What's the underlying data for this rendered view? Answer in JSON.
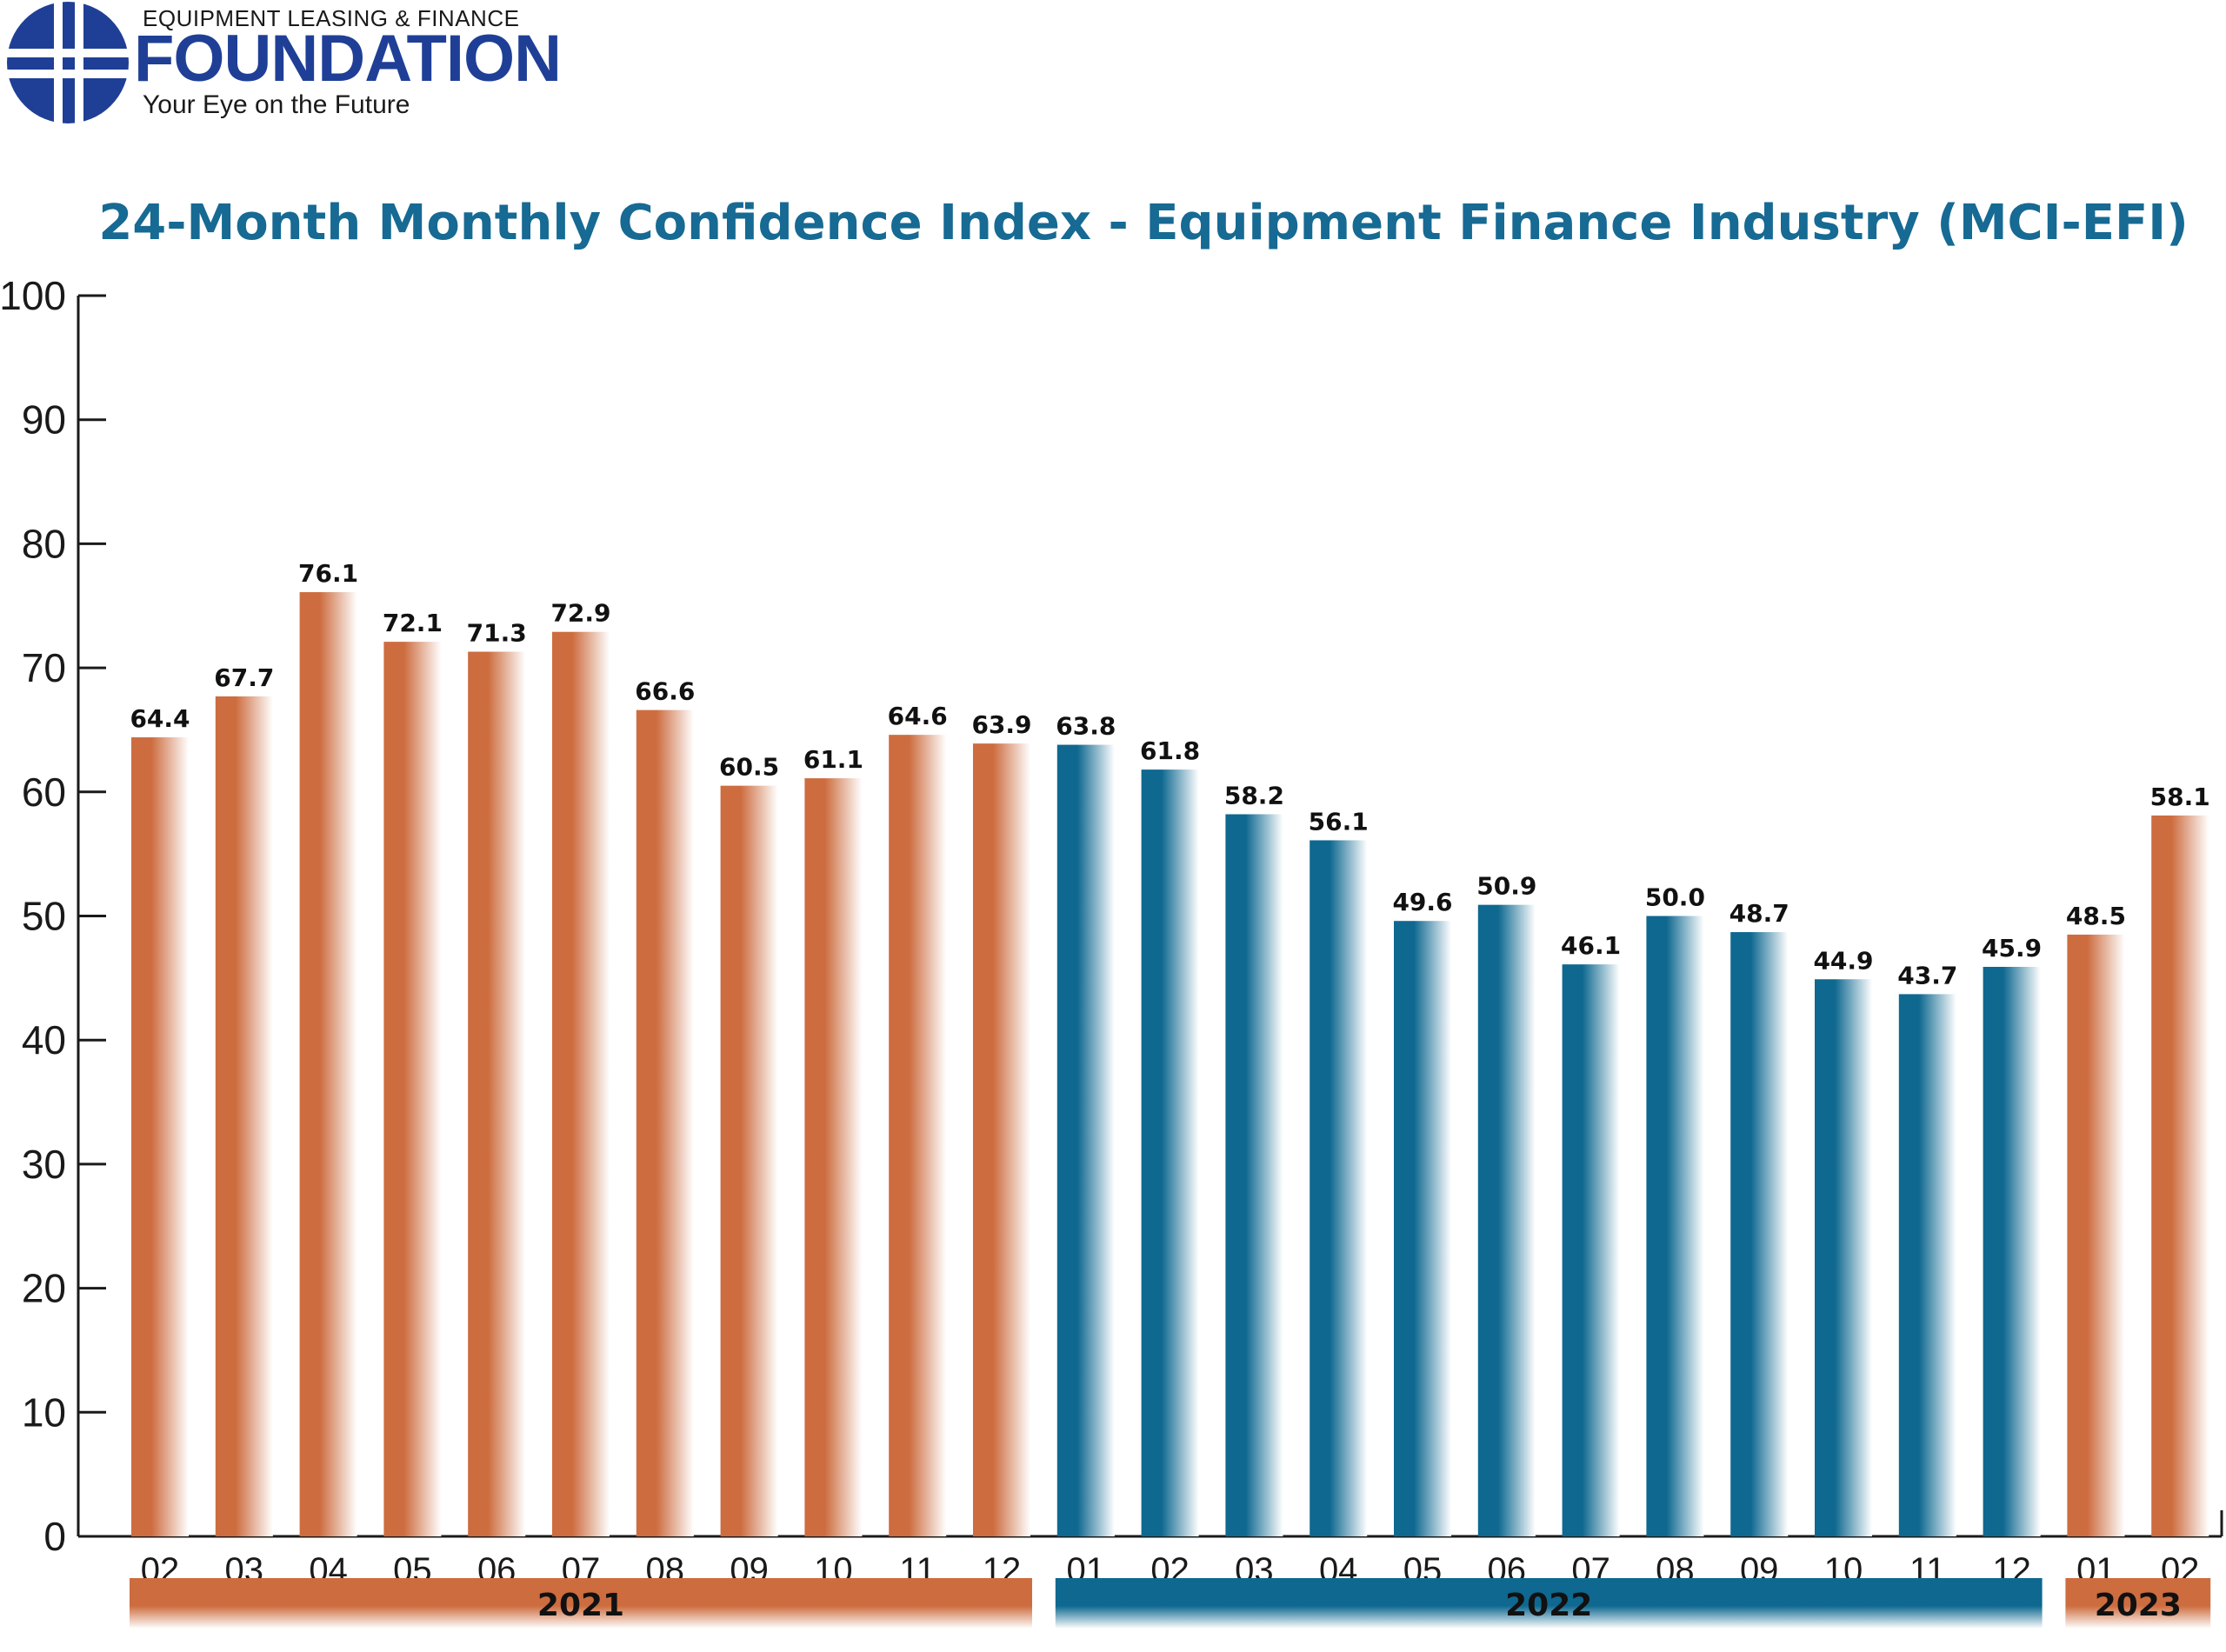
{
  "logo": {
    "top_line": "EQUIPMENT LEASING & FINANCE",
    "main": "FOUNDATION",
    "tagline": "Your Eye on the Future"
  },
  "colors": {
    "bar_2021": "#cd6c3f",
    "bar_2022": "#0e6890",
    "bar_2023": "#cd6c3f",
    "title": "#166a93",
    "logo_blue": "#1f3f97"
  },
  "chart_data": {
    "type": "bar",
    "title": "24-Month Monthly Confidence Index - Equipment Finance Industry (MCI-EFI)",
    "xlabel": "",
    "ylabel": "",
    "ylim": [
      0,
      100
    ],
    "yticks": [
      0,
      10,
      20,
      30,
      40,
      50,
      60,
      70,
      80,
      90,
      100
    ],
    "grid": false,
    "categories": [
      "02",
      "03",
      "04",
      "05",
      "06",
      "07",
      "08",
      "09",
      "10",
      "11",
      "12",
      "01",
      "02",
      "03",
      "04",
      "05",
      "06",
      "07",
      "08",
      "09",
      "10",
      "11",
      "12",
      "01",
      "02"
    ],
    "values": [
      64.4,
      67.7,
      76.1,
      72.1,
      71.3,
      72.9,
      66.6,
      60.5,
      61.1,
      64.6,
      63.9,
      63.8,
      61.8,
      58.2,
      56.1,
      49.6,
      50.9,
      46.1,
      50.0,
      48.7,
      44.9,
      43.7,
      45.9,
      48.5,
      58.1
    ],
    "value_labels": [
      "64.4",
      "67.7",
      "76.1",
      "72.1",
      "71.3",
      "72.9",
      "66.6",
      "60.5",
      "61.1",
      "64.6",
      "63.9",
      "63.8",
      "61.8",
      "58.2",
      "56.1",
      "49.6",
      "50.9",
      "46.1",
      "50.0",
      "48.7",
      "44.9",
      "43.7",
      "45.9",
      "48.5",
      "58.1"
    ],
    "year_groups": [
      {
        "label": "2021",
        "start": 0,
        "end": 10,
        "color": "#cd6c3f"
      },
      {
        "label": "2022",
        "start": 11,
        "end": 22,
        "color": "#0e6890"
      },
      {
        "label": "2023",
        "start": 23,
        "end": 24,
        "color": "#cd6c3f"
      }
    ]
  }
}
